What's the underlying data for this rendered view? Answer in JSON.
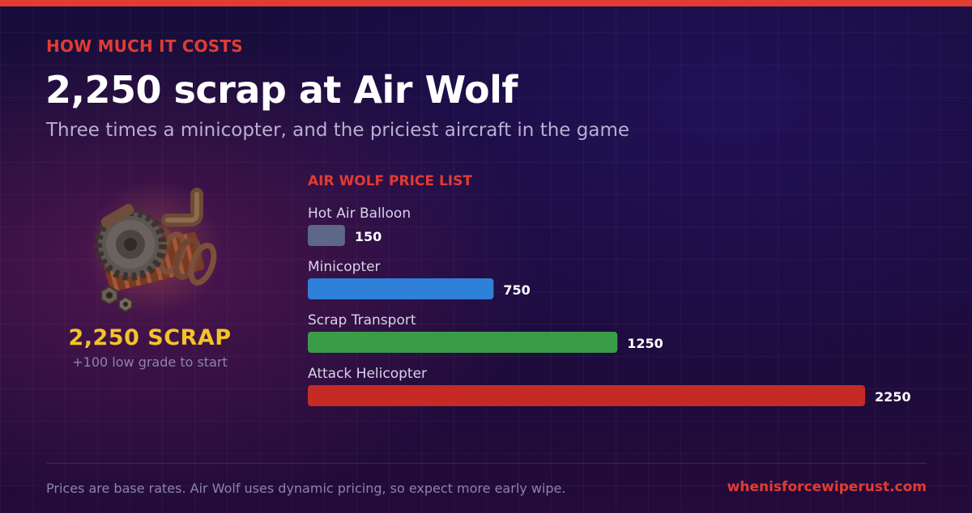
{
  "header": {
    "kicker": "HOW MUCH IT COSTS",
    "title": "2,250 scrap at Air Wolf",
    "subtitle": "Three times a minicopter, and the priciest aircraft in the game"
  },
  "cost_panel": {
    "icon": "scrap-pile-icon",
    "value": "2,250 SCRAP",
    "note": "+100 low grade to start"
  },
  "chart_data": {
    "type": "bar",
    "orientation": "horizontal",
    "title": "AIR WOLF PRICE LIST",
    "categories": [
      "Hot Air Balloon",
      "Minicopter",
      "Scrap Transport",
      "Attack Helicopter"
    ],
    "values": [
      150,
      750,
      1250,
      2250
    ],
    "value_labels": [
      "150",
      "750",
      "1250",
      "2250"
    ],
    "colors": [
      "#5f6789",
      "#2f80d8",
      "#3b9c47",
      "#c62a25"
    ],
    "xlim": [
      0,
      2250
    ],
    "grid": false,
    "legend": "none"
  },
  "footer": {
    "note": "Prices are base rates. Air Wolf uses dynamic pricing, so expect more early wipe.",
    "link": "whenisforcewiperust.com"
  },
  "colors": {
    "accent_red": "#e23b32",
    "gold": "#f3c32a"
  }
}
